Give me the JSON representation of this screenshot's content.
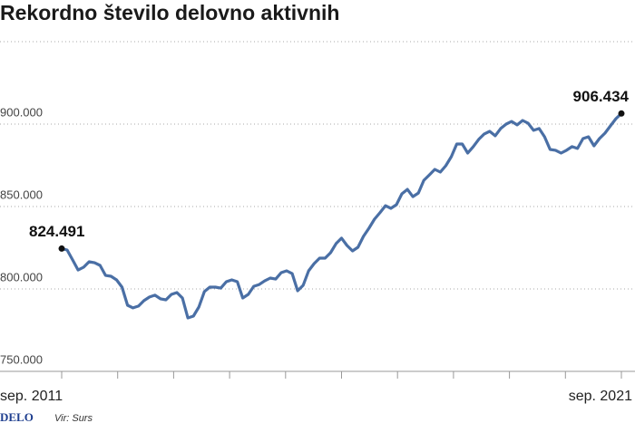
{
  "chart_data": {
    "type": "line",
    "title": "Rekordno število delovno aktivnih",
    "source": "Vir: Surs",
    "logo": "DELO",
    "categories": [
      "sep. 2011",
      null,
      null,
      null,
      null,
      null,
      null,
      null,
      null,
      null,
      null,
      null,
      null,
      null,
      null,
      null,
      null,
      null,
      null,
      null,
      null,
      null,
      null,
      null,
      null,
      null,
      null,
      null,
      null,
      null,
      null,
      null,
      null,
      null,
      null,
      null,
      null,
      null,
      null,
      null,
      null,
      null,
      null,
      null,
      null,
      null,
      null,
      null,
      null,
      null,
      null,
      null,
      null,
      null,
      null,
      null,
      null,
      null,
      null,
      null,
      null,
      null,
      null,
      null,
      null,
      null,
      null,
      null,
      null,
      null,
      null,
      null,
      null,
      null,
      null,
      null,
      null,
      null,
      null,
      null,
      null,
      null,
      null,
      null,
      null,
      null,
      null,
      null,
      null,
      null,
      null,
      null,
      null,
      null,
      null,
      null,
      null,
      null,
      null,
      null,
      null,
      null,
      "sep. 2021"
    ],
    "values": [
      824491,
      823600,
      817600,
      811500,
      813200,
      816500,
      815900,
      814300,
      808200,
      807700,
      805500,
      801100,
      790100,
      788500,
      789600,
      792900,
      795100,
      796200,
      794000,
      793400,
      796700,
      797800,
      794500,
      782400,
      783500,
      789000,
      798400,
      801100,
      801100,
      800500,
      804400,
      805500,
      804400,
      794500,
      796700,
      801600,
      802700,
      804900,
      806600,
      806000,
      809900,
      811000,
      809300,
      798900,
      802200,
      811000,
      815400,
      818700,
      818700,
      822000,
      827500,
      830800,
      826400,
      823100,
      825300,
      831900,
      836800,
      842300,
      846200,
      850500,
      848900,
      851100,
      857700,
      860400,
      856000,
      858200,
      865900,
      869200,
      872500,
      870900,
      874700,
      880200,
      887900,
      887900,
      882400,
      886300,
      890700,
      894000,
      895600,
      892900,
      897300,
      900000,
      901600,
      899500,
      902200,
      900500,
      896200,
      897300,
      892300,
      884600,
      884100,
      882400,
      884100,
      886300,
      885200,
      891200,
      892300,
      886800,
      891200,
      894500,
      898900,
      903300,
      906434
    ],
    "value_labels": [
      "824.491",
      null,
      null,
      null,
      null,
      null,
      null,
      null,
      null,
      null,
      null,
      null,
      null,
      null,
      null,
      null,
      null,
      null,
      null,
      null,
      null,
      null,
      null,
      null,
      null,
      null,
      null,
      null,
      null,
      null,
      null,
      null,
      null,
      null,
      null,
      null,
      null,
      null,
      null,
      null,
      null,
      null,
      null,
      null,
      null,
      null,
      null,
      null,
      null,
      null,
      null,
      null,
      null,
      null,
      null,
      null,
      null,
      null,
      null,
      null,
      null,
      null,
      null,
      null,
      null,
      null,
      null,
      null,
      null,
      null,
      null,
      null,
      null,
      null,
      null,
      null,
      null,
      null,
      null,
      null,
      null,
      null,
      null,
      null,
      null,
      null,
      null,
      null,
      null,
      null,
      null,
      null,
      null,
      null,
      null,
      null,
      null,
      null,
      null,
      null,
      null,
      null,
      "906.434"
    ],
    "color": "#4a6fa5",
    "ylim": [
      750000,
      950000
    ],
    "yticks": [
      {
        "value": 750000,
        "label": "750.000"
      },
      {
        "value": 800000,
        "label": "800.000"
      },
      {
        "value": 850000,
        "label": "850.000"
      },
      {
        "value": 900000,
        "label": "900.000"
      }
    ],
    "grid": true
  }
}
